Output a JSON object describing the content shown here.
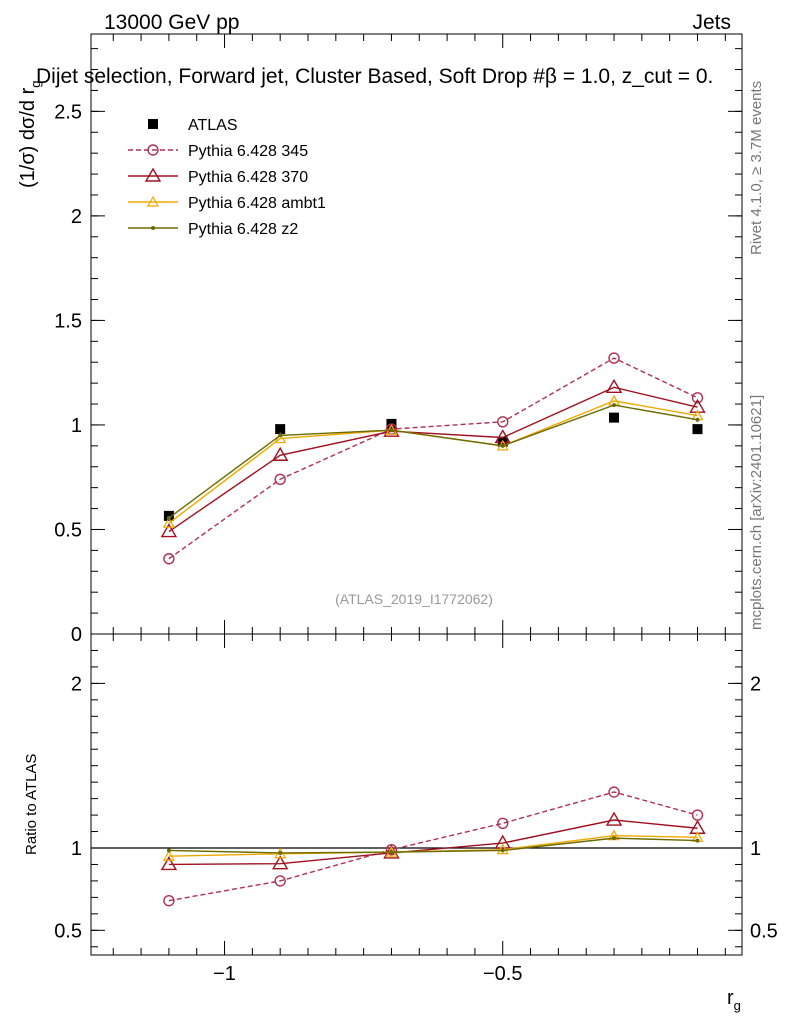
{
  "header": {
    "energy_label": "13000 GeV pp",
    "category_label": "Jets",
    "selection_title": "Dijet selection, Forward jet, Cluster Based, Soft Drop #β = 1.0, z_cut = 0.",
    "rivet_label": "Rivet 4.1.0, ≥ 3.7M events",
    "mcplots_label": "mcplots.cern.ch [arXiv:2401.10621]",
    "analysis_id": "(ATLAS_2019_I1772062)"
  },
  "colors": {
    "atlas": "#000000",
    "p345": "#b03050",
    "p370": "#a01020",
    "ambt1": "#f0a800",
    "z2": "#6b6b00"
  },
  "chart_data": [
    {
      "type": "line",
      "panel": "main",
      "xlabel": "r_g",
      "ylabel": "(1/σ) dσ/d r_g",
      "xlim": [
        -1.24,
        -0.07
      ],
      "ylim": [
        0,
        2.87
      ],
      "yticks": [
        {
          "value": 0,
          "label": "0"
        },
        {
          "value": 0.5,
          "label": "0.5"
        },
        {
          "value": 1,
          "label": "1"
        },
        {
          "value": 1.5,
          "label": "1.5"
        },
        {
          "value": 2,
          "label": "2"
        },
        {
          "value": 2.5,
          "label": "2.5"
        }
      ],
      "x": [
        -1.1,
        -0.9,
        -0.7,
        -0.5,
        -0.3,
        -0.15
      ],
      "series": [
        {
          "name": "ATLAS",
          "key": "atlas",
          "style": "data",
          "values": [
            0.565,
            0.98,
            1.005,
            0.92,
            1.035,
            0.98
          ]
        },
        {
          "name": "Pythia 6.428 345",
          "key": "p345",
          "style": "dashed-circle",
          "values": [
            0.36,
            0.74,
            0.98,
            1.015,
            1.32,
            1.13
          ]
        },
        {
          "name": "Pythia 6.428 370",
          "key": "p370",
          "style": "triangle",
          "values": [
            0.49,
            0.855,
            0.97,
            0.94,
            1.18,
            1.085
          ]
        },
        {
          "name": "Pythia 6.428 ambt1",
          "key": "ambt1",
          "style": "small-triangle",
          "values": [
            0.53,
            0.935,
            0.975,
            0.9,
            1.115,
            1.045
          ]
        },
        {
          "name": "Pythia 6.428 z2",
          "key": "z2",
          "style": "dot",
          "values": [
            0.555,
            0.95,
            0.975,
            0.9,
            1.095,
            1.025
          ]
        }
      ]
    },
    {
      "type": "line",
      "panel": "ratio",
      "xlabel": "r_g",
      "ylabel": "Ratio to ATLAS",
      "xlim": [
        -1.24,
        -0.07
      ],
      "ylim": [
        0.35,
        2.3
      ],
      "yticks": [
        {
          "value": 0.5,
          "label": "0.5"
        },
        {
          "value": 1,
          "label": "1"
        },
        {
          "value": 2,
          "label": "2"
        }
      ],
      "xticks": [
        {
          "value": -1,
          "label": "−1"
        },
        {
          "value": -0.5,
          "label": "−0.5"
        }
      ],
      "x": [
        -1.1,
        -0.9,
        -0.7,
        -0.5,
        -0.3,
        -0.15
      ],
      "series": [
        {
          "name": "Pythia 6.428 345",
          "key": "p345",
          "style": "dashed-circle",
          "values": [
            0.68,
            0.8,
            0.99,
            1.15,
            1.34,
            1.2
          ]
        },
        {
          "name": "Pythia 6.428 370",
          "key": "p370",
          "style": "triangle",
          "values": [
            0.9,
            0.905,
            0.97,
            1.03,
            1.17,
            1.12
          ]
        },
        {
          "name": "Pythia 6.428 ambt1",
          "key": "ambt1",
          "style": "small-triangle",
          "values": [
            0.95,
            0.965,
            0.975,
            0.99,
            1.075,
            1.065
          ]
        },
        {
          "name": "Pythia 6.428 z2",
          "key": "z2",
          "style": "dot",
          "values": [
            0.985,
            0.97,
            0.975,
            0.985,
            1.06,
            1.045
          ]
        }
      ]
    }
  ]
}
